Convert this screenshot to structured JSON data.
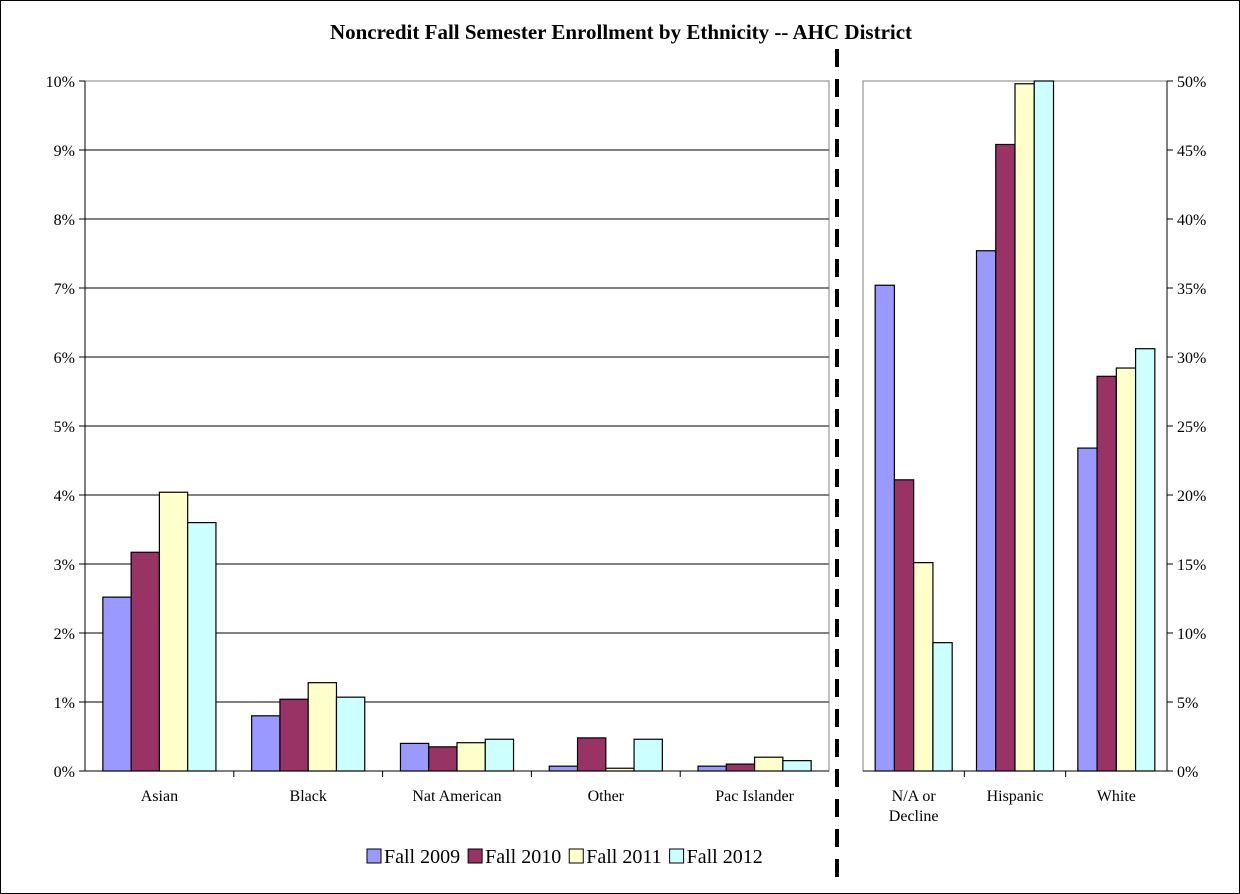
{
  "chart_data": {
    "title": "Noncredit Fall Semester Enrollment by Ethnicity -- AHC District",
    "series": [
      {
        "name": "Fall 2009",
        "color": "#9999ff"
      },
      {
        "name": "Fall 2010",
        "color": "#993366"
      },
      {
        "name": "Fall 2011",
        "color": "#ffffcc"
      },
      {
        "name": "Fall 2012",
        "color": "#ccffff"
      }
    ],
    "panels": [
      {
        "type": "bar",
        "axis_side": "left",
        "ylim": [
          0,
          10
        ],
        "yticks": [
          "0%",
          "1%",
          "2%",
          "3%",
          "4%",
          "5%",
          "6%",
          "7%",
          "8%",
          "9%",
          "10%"
        ],
        "gridlines": true,
        "categories": [
          {
            "label": [
              "Asian"
            ],
            "values": [
              2.52,
              3.17,
              4.04,
              3.6
            ]
          },
          {
            "label": [
              "Black"
            ],
            "values": [
              0.8,
              1.04,
              1.28,
              1.07
            ]
          },
          {
            "label": [
              "Nat American"
            ],
            "values": [
              0.4,
              0.35,
              0.41,
              0.46
            ]
          },
          {
            "label": [
              "Other"
            ],
            "values": [
              0.07,
              0.48,
              0.04,
              0.46
            ]
          },
          {
            "label": [
              "Pac Islander"
            ],
            "values": [
              0.07,
              0.1,
              0.2,
              0.15
            ]
          }
        ]
      },
      {
        "type": "bar",
        "axis_side": "right",
        "ylim": [
          0,
          50
        ],
        "yticks": [
          "0%",
          "5%",
          "10%",
          "15%",
          "20%",
          "25%",
          "30%",
          "35%",
          "40%",
          "45%",
          "50%"
        ],
        "gridlines": false,
        "categories": [
          {
            "label": [
              "N/A or",
              "Decline"
            ],
            "values": [
              35.2,
              21.1,
              15.1,
              9.3
            ]
          },
          {
            "label": [
              "Hispanic"
            ],
            "values": [
              37.7,
              45.4,
              49.8,
              50.0
            ]
          },
          {
            "label": [
              "White"
            ],
            "values": [
              23.4,
              28.6,
              29.2,
              30.6
            ]
          }
        ]
      }
    ],
    "legend_position": "bottom"
  }
}
